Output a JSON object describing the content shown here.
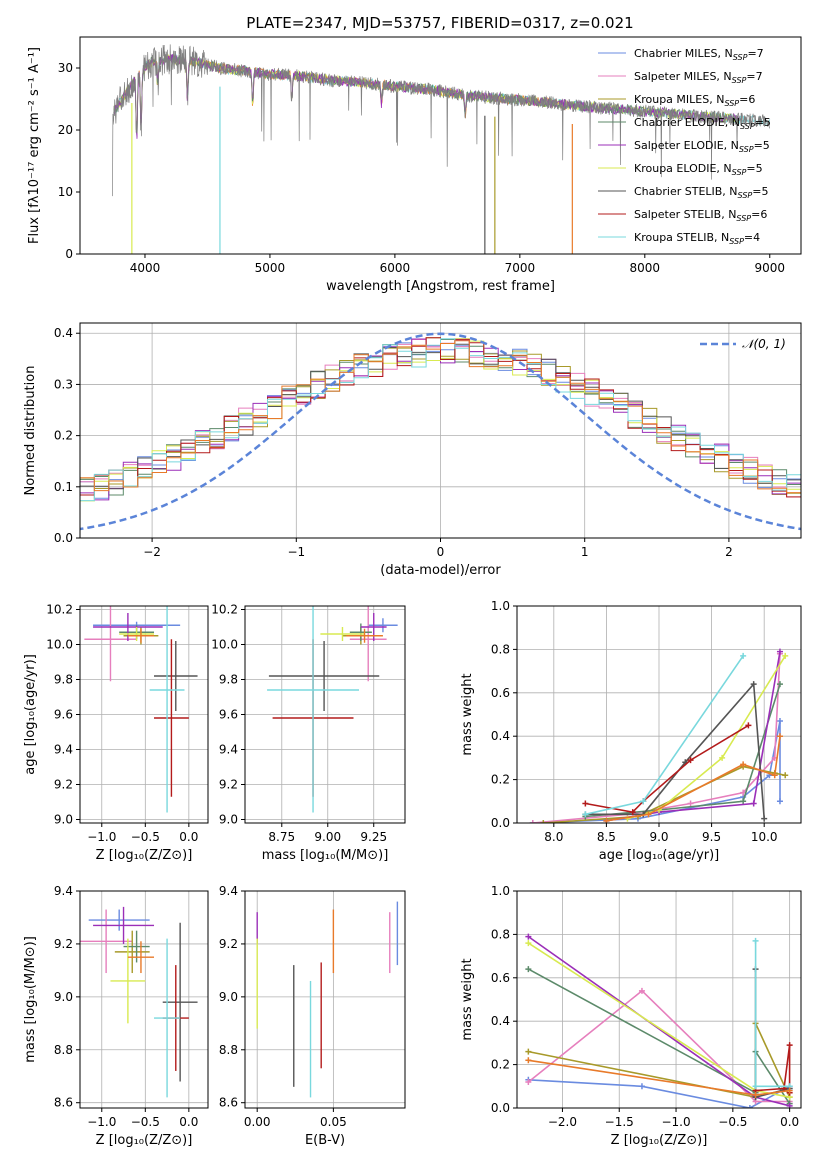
{
  "title": "PLATE=2347, MJD=53757, FIBERID=0317, z=0.021",
  "colors": {
    "Chabrier MILES": "#6a8be0",
    "Salpeter MILES": "#e67fbd",
    "Kroupa MILES": "#a89a2a",
    "Chabrier ELODIE": "#5c8a6a",
    "Salpeter ELODIE": "#9b2fb8",
    "Kroupa ELODIE": "#d8ea50",
    "Chabrier STELIB": "#555555",
    "Salpeter STELIB": "#b31b1b",
    "Kroupa STELIB": "#79d8dd",
    "orange": "#e87a2a",
    "data_gray": "#808080"
  },
  "chart_data": [
    {
      "id": "spectrum",
      "type": "line",
      "xlabel": "wavelength [Angstrom, rest frame]",
      "ylabel": "Flux [fλ10⁻¹⁷ erg cm⁻² s⁻¹ A⁻¹]",
      "xlim": [
        3480,
        9250
      ],
      "ylim": [
        0,
        35
      ],
      "xticks": [
        4000,
        5000,
        6000,
        7000,
        8000,
        9000
      ],
      "yticks": [
        0,
        10,
        20,
        30
      ],
      "continuum": {
        "x": [
          3750,
          3850,
          3950,
          4050,
          4200,
          4400,
          4600,
          4800,
          5000,
          5200,
          5500,
          5800,
          6000,
          6300,
          6600,
          6900,
          7200,
          7400,
          7700,
          8000,
          8300,
          8600,
          8900,
          9000
        ],
        "y": [
          23,
          26,
          29,
          31,
          31.5,
          31,
          30,
          29.5,
          29,
          28.8,
          28,
          27.5,
          27,
          26.5,
          25.5,
          25,
          24.5,
          24,
          23.5,
          23,
          22.5,
          22,
          21.5,
          21.3
        ]
      },
      "absorption_lines": [
        {
          "x": 3934,
          "depth": 10
        },
        {
          "x": 3969,
          "depth": 9
        },
        {
          "x": 4102,
          "depth": 4
        },
        {
          "x": 4340,
          "depth": 6
        },
        {
          "x": 4862,
          "depth": 5
        },
        {
          "x": 5175,
          "depth": 4
        },
        {
          "x": 5893,
          "depth": 3
        },
        {
          "x": 6563,
          "depth": 3
        }
      ],
      "legend": [
        {
          "label": "Chabrier MILES, N",
          "sub": "SSP",
          "n": "=7"
        },
        {
          "label": "Salpeter MILES, N",
          "sub": "SSP",
          "n": "=7"
        },
        {
          "label": "Kroupa MILES, N",
          "sub": "SSP",
          "n": "=6"
        },
        {
          "label": "Chabrier ELODIE, N",
          "sub": "SSP",
          "n": "=5"
        },
        {
          "label": "Salpeter ELODIE, N",
          "sub": "SSP",
          "n": "=5"
        },
        {
          "label": "Kroupa ELODIE, N",
          "sub": "SSP",
          "n": "=5"
        },
        {
          "label": "Chabrier STELIB, N",
          "sub": "SSP",
          "n": "=5"
        },
        {
          "label": "Salpeter STELIB, N",
          "sub": "SSP",
          "n": "=6"
        },
        {
          "label": "Kroupa STELIB, N",
          "sub": "SSP",
          "n": "=4"
        }
      ]
    },
    {
      "id": "residuals",
      "type": "line",
      "xlabel": "(data-model)/error",
      "ylabel": "Normed distribution",
      "xlim": [
        -2.5,
        2.5
      ],
      "ylim": [
        0,
        0.42
      ],
      "xticks": [
        -2,
        -1,
        0,
        1,
        2
      ],
      "yticks": [
        0.0,
        0.1,
        0.2,
        0.3,
        0.4
      ],
      "gaussian_label": "𝒩(0, 1)",
      "bin_width": 0.1
    },
    {
      "id": "age_vs_Z",
      "type": "scatter",
      "xlabel": "Z [log₁₀(Z/Z⊙)]",
      "ylabel": "age  [log₁₀(age/yr)]",
      "xlim": [
        -1.25,
        0.22
      ],
      "ylim": [
        8.98,
        10.22
      ],
      "xticks": [
        -1.0,
        -0.5,
        0.0
      ],
      "yticks": [
        9.0,
        9.2,
        9.4,
        9.6,
        9.8,
        10.0,
        10.2
      ],
      "points": [
        {
          "m": "Chabrier MILES",
          "x": -0.6,
          "xerr": 0.5,
          "y": 10.11,
          "yerr": 0.02
        },
        {
          "m": "Salpeter MILES",
          "x": -0.9,
          "xerr": 0.3,
          "y": 10.03,
          "yerr": 0.24
        },
        {
          "m": "Kroupa MILES",
          "x": -0.55,
          "xerr": 0.2,
          "y": 10.05,
          "yerr": 0.05
        },
        {
          "m": "Chabrier ELODIE",
          "x": -0.6,
          "xerr": 0.2,
          "y": 10.07,
          "yerr": 0.04
        },
        {
          "m": "Salpeter ELODIE",
          "x": -0.7,
          "xerr": 0.4,
          "y": 10.1,
          "yerr": 0.08
        },
        {
          "m": "Kroupa ELODIE",
          "x": -0.6,
          "xerr": 0.2,
          "y": 10.06,
          "yerr": 0.04
        },
        {
          "m": "Chabrier STELIB",
          "x": -0.15,
          "xerr": 0.25,
          "y": 9.82,
          "yerr": 0.2
        },
        {
          "m": "Salpeter STELIB",
          "x": -0.2,
          "xerr": 0.2,
          "y": 9.58,
          "yerr": 0.45
        },
        {
          "m": "Kroupa STELIB",
          "x": -0.25,
          "xerr": 0.2,
          "y": 9.74,
          "yerr": 0.7
        },
        {
          "m": "orange",
          "x": -0.55,
          "xerr": 0.15,
          "y": 10.05,
          "yerr": 0.04
        }
      ]
    },
    {
      "id": "age_vs_mass",
      "type": "scatter",
      "xlabel": "mass [log₁₀(M/M⊙)]",
      "ylabel": "",
      "xlim": [
        8.55,
        9.42
      ],
      "ylim": [
        8.98,
        10.22
      ],
      "xticks": [
        8.75,
        9.0,
        9.25
      ],
      "yticks": [
        9.0,
        9.2,
        9.4,
        9.6,
        9.8,
        10.0,
        10.2
      ],
      "points": [
        {
          "m": "Chabrier MILES",
          "x": 9.3,
          "xerr": 0.08,
          "y": 10.11,
          "yerr": 0.04
        },
        {
          "m": "Salpeter MILES",
          "x": 9.22,
          "xerr": 0.1,
          "y": 10.03,
          "yerr": 0.24
        },
        {
          "m": "Kroupa MILES",
          "x": 9.18,
          "xerr": 0.1,
          "y": 10.05,
          "yerr": 0.05
        },
        {
          "m": "Chabrier ELODIE",
          "x": 9.18,
          "xerr": 0.06,
          "y": 10.07,
          "yerr": 0.05
        },
        {
          "m": "Salpeter ELODIE",
          "x": 9.25,
          "xerr": 0.07,
          "y": 10.1,
          "yerr": 0.08
        },
        {
          "m": "Kroupa ELODIE",
          "x": 9.08,
          "xerr": 0.12,
          "y": 10.06,
          "yerr": 0.04
        },
        {
          "m": "Chabrier STELIB",
          "x": 8.98,
          "xerr": 0.3,
          "y": 9.82,
          "yerr": 0.2
        },
        {
          "m": "Salpeter STELIB",
          "x": 8.92,
          "xerr": 0.22,
          "y": 9.58,
          "yerr": 0.45
        },
        {
          "m": "Kroupa STELIB",
          "x": 8.92,
          "xerr": 0.25,
          "y": 9.74,
          "yerr": 0.7
        },
        {
          "m": "orange",
          "x": 9.2,
          "xerr": 0.1,
          "y": 10.05,
          "yerr": 0.04
        }
      ]
    },
    {
      "id": "weight_vs_age",
      "type": "line",
      "xlabel": "age  [log₁₀(age/yr)]",
      "ylabel": "mass weight",
      "xlim": [
        7.65,
        10.35
      ],
      "ylim": [
        0,
        1
      ],
      "xticks": [
        8.0,
        8.5,
        9.0,
        9.5,
        10.0
      ],
      "yticks": [
        0.0,
        0.2,
        0.4,
        0.6,
        0.8,
        1.0
      ],
      "series": [
        {
          "m": "Chabrier MILES",
          "x": [
            7.8,
            8.8,
            9.8,
            10.05,
            10.15,
            10.15
          ],
          "y": [
            0.0,
            0.02,
            0.12,
            0.22,
            0.47,
            0.1
          ]
        },
        {
          "m": "Salpeter MILES",
          "x": [
            7.8,
            8.7,
            9.3,
            9.8,
            10.1,
            10.15
          ],
          "y": [
            0.0,
            0.04,
            0.09,
            0.14,
            0.3,
            0.78
          ]
        },
        {
          "m": "Kroupa MILES",
          "x": [
            7.9,
            8.8,
            9.8,
            10.1,
            10.2
          ],
          "y": [
            0.0,
            0.03,
            0.26,
            0.23,
            0.22
          ]
        },
        {
          "m": "Chabrier ELODIE",
          "x": [
            8.3,
            9.0,
            9.8,
            10.15
          ],
          "y": [
            0.03,
            0.06,
            0.1,
            0.64
          ]
        },
        {
          "m": "Salpeter ELODIE",
          "x": [
            8.5,
            9.0,
            9.9,
            10.15
          ],
          "y": [
            0.01,
            0.05,
            0.09,
            0.79
          ]
        },
        {
          "m": "Kroupa ELODIE",
          "x": [
            8.7,
            9.0,
            9.6,
            10.2
          ],
          "y": [
            0.02,
            0.06,
            0.3,
            0.77
          ]
        },
        {
          "m": "Chabrier STELIB",
          "x": [
            8.3,
            8.85,
            9.25,
            9.9,
            10.0
          ],
          "y": [
            0.04,
            0.04,
            0.28,
            0.64,
            0.02
          ]
        },
        {
          "m": "Salpeter STELIB",
          "x": [
            8.3,
            8.75,
            8.85,
            9.3,
            9.85
          ],
          "y": [
            0.09,
            0.05,
            0.1,
            0.29,
            0.45
          ]
        },
        {
          "m": "Kroupa STELIB",
          "x": [
            8.3,
            8.85,
            9.8
          ],
          "y": [
            0.04,
            0.1,
            0.77
          ]
        },
        {
          "m": "orange",
          "x": [
            8.5,
            8.9,
            9.8,
            10.1,
            10.15
          ],
          "y": [
            0.01,
            0.04,
            0.27,
            0.22,
            0.4
          ]
        }
      ]
    },
    {
      "id": "mass_vs_Z",
      "type": "scatter",
      "xlabel": "Z [log₁₀(Z/Z⊙)]",
      "ylabel": "mass [log₁₀(M/M⊙)]",
      "xlim": [
        -1.25,
        0.22
      ],
      "ylim": [
        8.58,
        9.4
      ],
      "xticks": [
        -1.0,
        -0.5,
        0.0
      ],
      "yticks": [
        8.6,
        8.8,
        9.0,
        9.2,
        9.4
      ],
      "points": [
        {
          "m": "Chabrier MILES",
          "x": -0.8,
          "xerr": 0.35,
          "y": 9.29,
          "yerr": 0.04
        },
        {
          "m": "Salpeter MILES",
          "x": -0.95,
          "xerr": 0.3,
          "y": 9.21,
          "yerr": 0.12
        },
        {
          "m": "Kroupa MILES",
          "x": -0.65,
          "xerr": 0.2,
          "y": 9.17,
          "yerr": 0.08
        },
        {
          "m": "Chabrier ELODIE",
          "x": -0.6,
          "xerr": 0.15,
          "y": 9.19,
          "yerr": 0.06
        },
        {
          "m": "Salpeter ELODIE",
          "x": -0.75,
          "xerr": 0.35,
          "y": 9.27,
          "yerr": 0.07
        },
        {
          "m": "Kroupa ELODIE",
          "x": -0.7,
          "xerr": 0.2,
          "y": 9.06,
          "yerr": 0.16
        },
        {
          "m": "Chabrier STELIB",
          "x": -0.1,
          "xerr": 0.2,
          "y": 8.98,
          "yerr": 0.3
        },
        {
          "m": "Salpeter STELIB",
          "x": -0.15,
          "xerr": 0.15,
          "y": 8.92,
          "yerr": 0.2
        },
        {
          "m": "Kroupa STELIB",
          "x": -0.25,
          "xerr": 0.15,
          "y": 8.92,
          "yerr": 0.3
        },
        {
          "m": "orange",
          "x": -0.55,
          "xerr": 0.15,
          "y": 9.15,
          "yerr": 0.06
        }
      ]
    },
    {
      "id": "mass_vs_EBV",
      "type": "scatter",
      "xlabel": "E(B-V)",
      "ylabel": "",
      "xlim": [
        -0.008,
        0.097
      ],
      "ylim": [
        8.58,
        9.4
      ],
      "xticks": [
        0.0,
        0.05
      ],
      "yticks": [
        8.6,
        8.8,
        9.0,
        9.2,
        9.4
      ],
      "points": [
        {
          "m": "Chabrier MILES",
          "x": 0.092,
          "yl": 9.12,
          "yh": 9.36
        },
        {
          "m": "Salpeter MILES",
          "x": 0.087,
          "yl": 9.09,
          "yh": 9.32
        },
        {
          "m": "Salpeter ELODIE",
          "x": 0.0,
          "yl": 9.2,
          "yh": 9.32
        },
        {
          "m": "Kroupa ELODIE",
          "x": 0.0,
          "yl": 8.88,
          "yh": 9.22
        },
        {
          "m": "Chabrier STELIB",
          "x": 0.024,
          "yl": 8.66,
          "yh": 9.12
        },
        {
          "m": "Kroupa STELIB",
          "x": 0.035,
          "yl": 8.62,
          "yh": 9.06
        },
        {
          "m": "Salpeter STELIB",
          "x": 0.042,
          "yl": 8.73,
          "yh": 9.13
        },
        {
          "m": "orange",
          "x": 0.05,
          "yl": 9.09,
          "yh": 9.33
        }
      ]
    },
    {
      "id": "weight_vs_Z",
      "type": "line",
      "xlabel": "Z [log₁₀(Z/Z⊙)]",
      "ylabel": "mass weight",
      "xlim": [
        -2.4,
        0.1
      ],
      "ylim": [
        0,
        1
      ],
      "xticks": [
        -2.0,
        -1.5,
        -1.0,
        -0.5,
        0.0
      ],
      "yticks": [
        0.0,
        0.2,
        0.4,
        0.6,
        0.8,
        1.0
      ],
      "series": [
        {
          "m": "Chabrier MILES",
          "x": [
            -2.3,
            -1.3,
            -0.35,
            0.0,
            0.0
          ],
          "y": [
            0.13,
            0.1,
            0.0,
            0.1,
            0.09
          ]
        },
        {
          "m": "Salpeter MILES",
          "x": [
            -2.3,
            -1.3,
            -0.3,
            0.0
          ],
          "y": [
            0.12,
            0.54,
            0.03,
            0.03
          ]
        },
        {
          "m": "Kroupa MILES",
          "x": [
            -2.3,
            -0.3,
            -0.3,
            0.0
          ],
          "y": [
            0.26,
            0.05,
            0.39,
            0.05
          ]
        },
        {
          "m": "Chabrier ELODIE",
          "x": [
            -2.3,
            -0.3,
            -0.3,
            0.0
          ],
          "y": [
            0.64,
            0.07,
            0.26,
            0.02
          ]
        },
        {
          "m": "Salpeter ELODIE",
          "x": [
            -2.3,
            -0.3,
            0.0
          ],
          "y": [
            0.79,
            0.05,
            0.01
          ]
        },
        {
          "m": "Kroupa ELODIE",
          "x": [
            -2.3,
            -0.3,
            0.0
          ],
          "y": [
            0.76,
            0.08,
            0.05
          ]
        },
        {
          "m": "Chabrier STELIB",
          "x": [
            -0.3,
            -0.3,
            0.0
          ],
          "y": [
            0.64,
            0.05,
            0.09
          ]
        },
        {
          "m": "Salpeter STELIB",
          "x": [
            -0.3,
            -0.05,
            0.0,
            0.0
          ],
          "y": [
            0.08,
            0.09,
            0.29,
            0.07
          ]
        },
        {
          "m": "Kroupa STELIB",
          "x": [
            -0.3,
            -0.3,
            0.0
          ],
          "y": [
            0.77,
            0.1,
            0.1
          ]
        },
        {
          "m": "orange",
          "x": [
            -2.3,
            -0.3,
            0.0
          ],
          "y": [
            0.22,
            0.06,
            0.08
          ]
        }
      ]
    }
  ]
}
